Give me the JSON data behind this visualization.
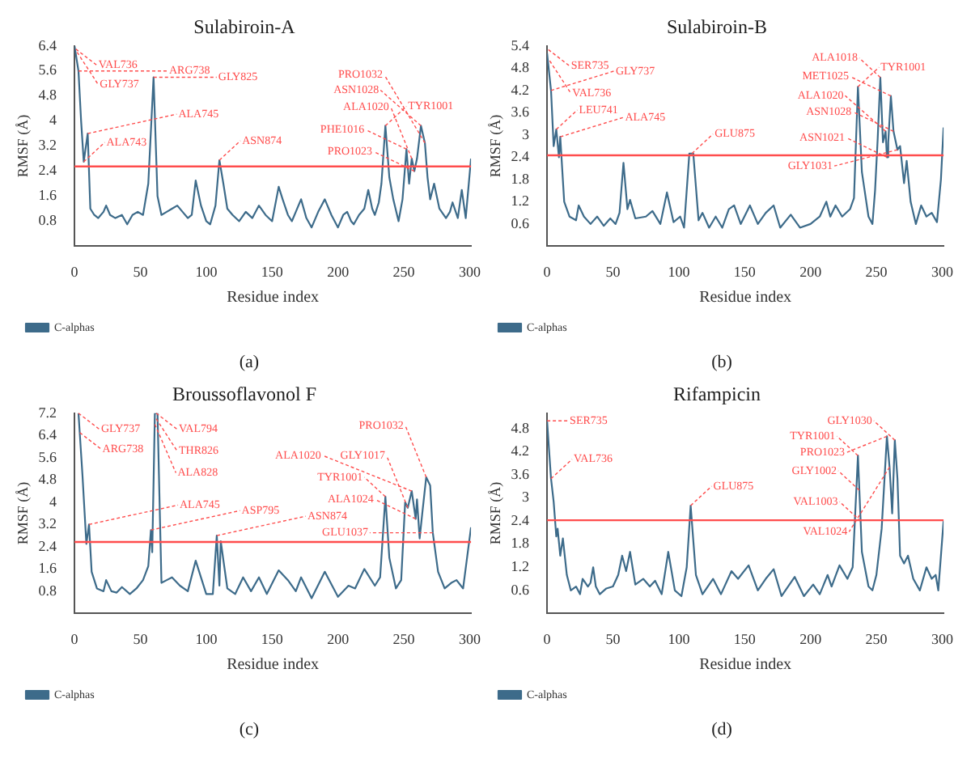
{
  "chart_data": [
    {
      "type": "line",
      "title": "Sulabiroin-A",
      "xlabel": "Residue index",
      "ylabel": "RMSF (Å)",
      "xlim": [
        0,
        301
      ],
      "xticks": [
        0,
        50,
        100,
        150,
        200,
        250,
        300
      ],
      "ylim": [
        0,
        6.4
      ],
      "yticks": [
        0.8,
        1.6,
        2.4,
        3.2,
        4.0,
        4.8,
        5.6,
        6.4
      ],
      "legend": "bottom left",
      "grid": false,
      "series": [
        {
          "name": "C-alphas",
          "color": "#3d6b8a",
          "x": [
            0,
            3,
            5,
            7,
            8,
            10,
            12,
            15,
            18,
            22,
            24,
            27,
            31,
            36,
            40,
            44,
            48,
            52,
            56,
            60,
            63,
            66,
            70,
            74,
            78,
            82,
            86,
            89,
            92,
            96,
            100,
            103,
            107,
            110,
            113,
            116,
            120,
            125,
            130,
            135,
            140,
            145,
            150,
            155,
            158,
            162,
            165,
            168,
            172,
            176,
            180,
            185,
            190,
            195,
            200,
            204,
            207,
            210,
            212,
            216,
            220,
            223,
            226,
            228,
            231,
            233,
            236,
            239,
            242,
            246,
            249,
            252,
            254,
            256,
            258,
            260,
            263,
            266,
            268,
            270,
            273,
            277,
            282,
            285,
            287,
            291,
            294,
            297,
            301
          ],
          "values": [
            6.4,
            5.6,
            4.0,
            2.7,
            3.0,
            3.6,
            1.2,
            1.0,
            0.9,
            1.1,
            1.3,
            1.0,
            0.9,
            1.0,
            0.7,
            1.0,
            1.1,
            1.0,
            2.0,
            5.4,
            1.6,
            1.0,
            1.1,
            1.2,
            1.3,
            1.1,
            0.9,
            1.0,
            2.1,
            1.3,
            0.8,
            0.7,
            1.3,
            2.75,
            2.0,
            1.2,
            1.0,
            0.8,
            1.1,
            0.9,
            1.3,
            1.0,
            0.8,
            1.9,
            1.5,
            1.0,
            0.8,
            1.1,
            1.5,
            0.9,
            0.6,
            1.1,
            1.5,
            1.0,
            0.6,
            1.0,
            1.1,
            0.8,
            0.7,
            1.0,
            1.2,
            1.8,
            1.2,
            1.0,
            1.4,
            2.0,
            3.85,
            2.2,
            1.5,
            0.8,
            1.5,
            3.1,
            2.0,
            2.8,
            2.4,
            2.8,
            3.85,
            3.3,
            2.2,
            1.5,
            2.0,
            1.2,
            0.9,
            1.1,
            1.4,
            0.9,
            1.8,
            0.9,
            2.8
          ]
        }
      ],
      "ref_lines": [
        {
          "axis": "y",
          "value": 2.55,
          "color": "#ff4d4d"
        }
      ],
      "annotations": [
        {
          "text": "VAL736",
          "x": 1,
          "y": 6.3
        },
        {
          "text": "GLY737",
          "x": 2,
          "y": 6.2
        },
        {
          "text": "ARG738",
          "x": 3,
          "y": 5.6
        },
        {
          "text": "ALA745",
          "x": 10,
          "y": 3.6
        },
        {
          "text": "ALA743",
          "x": 7,
          "y": 2.7
        },
        {
          "text": "GLY825",
          "x": 60,
          "y": 5.4
        },
        {
          "text": "ASN874",
          "x": 110,
          "y": 2.75
        },
        {
          "text": "TYR1001",
          "x": 236,
          "y": 3.85
        },
        {
          "text": "PHE1016",
          "x": 252,
          "y": 3.1
        },
        {
          "text": "ALA1020",
          "x": 256,
          "y": 2.8
        },
        {
          "text": "PRO1023",
          "x": 258,
          "y": 2.4
        },
        {
          "text": "ASN1028",
          "x": 263,
          "y": 3.85
        },
        {
          "text": "PRO1032",
          "x": 266,
          "y": 3.3
        },
        "(a)"
      ]
    },
    {
      "type": "line",
      "title": "Sulabiroin-B",
      "xlabel": "Residue index",
      "ylabel": "RMSF (Å)",
      "xlim": [
        0,
        301
      ],
      "xticks": [
        0,
        50,
        100,
        150,
        200,
        250,
        300
      ],
      "ylim": [
        0,
        5.4
      ],
      "yticks": [
        0.6,
        1.2,
        1.8,
        2.4,
        3.0,
        3.6,
        4.2,
        4.8,
        5.4
      ],
      "legend": "bottom left",
      "grid": false,
      "series": [
        {
          "name": "C-alphas",
          "color": "#3d6b8a",
          "x": [
            0,
            3,
            5,
            7,
            9,
            10,
            13,
            17,
            22,
            24,
            28,
            33,
            38,
            43,
            48,
            52,
            55,
            58,
            61,
            63,
            67,
            75,
            80,
            86,
            91,
            96,
            101,
            104,
            108,
            111,
            115,
            118,
            123,
            128,
            133,
            138,
            142,
            147,
            154,
            160,
            166,
            172,
            177,
            185,
            192,
            200,
            207,
            212,
            215,
            219,
            224,
            230,
            233,
            236,
            239,
            244,
            247,
            249,
            251,
            253,
            255,
            257,
            258,
            259,
            261,
            263,
            266,
            268,
            271,
            273,
            276,
            280,
            284,
            288,
            292,
            296,
            299,
            301
          ],
          "values": [
            5.2,
            4.2,
            2.7,
            3.15,
            2.4,
            2.95,
            1.2,
            0.8,
            0.7,
            1.1,
            0.8,
            0.6,
            0.8,
            0.55,
            0.75,
            0.6,
            0.9,
            2.25,
            1.0,
            1.25,
            0.75,
            0.8,
            0.95,
            0.6,
            1.45,
            0.65,
            0.8,
            0.5,
            2.5,
            2.5,
            0.7,
            0.9,
            0.5,
            0.8,
            0.5,
            1.0,
            1.1,
            0.6,
            1.1,
            0.6,
            0.9,
            1.1,
            0.5,
            0.85,
            0.5,
            0.6,
            0.8,
            1.2,
            0.8,
            1.1,
            0.8,
            1.0,
            1.3,
            4.3,
            2.0,
            0.8,
            0.6,
            1.5,
            2.9,
            4.55,
            2.8,
            3.1,
            2.4,
            2.8,
            4.05,
            3.1,
            2.6,
            2.7,
            1.7,
            2.3,
            1.2,
            0.6,
            1.1,
            0.8,
            0.9,
            0.65,
            1.8,
            3.2
          ]
        }
      ],
      "ref_lines": [
        {
          "axis": "y",
          "value": 2.45,
          "color": "#ff4d4d"
        }
      ],
      "annotations": [
        {
          "text": "SER735",
          "x": 1,
          "y": 5.3
        },
        {
          "text": "VAL736",
          "x": 2,
          "y": 5.0
        },
        {
          "text": "GLY737",
          "x": 3,
          "y": 4.2
        },
        {
          "text": "LEU741",
          "x": 7,
          "y": 3.15
        },
        {
          "text": "ALA745",
          "x": 10,
          "y": 2.95
        },
        {
          "text": "GLU875",
          "x": 110,
          "y": 2.5
        },
        {
          "text": "TYR1001",
          "x": 236,
          "y": 4.3
        },
        {
          "text": "ALA1018",
          "x": 253,
          "y": 4.55
        },
        {
          "text": "MET1025",
          "x": 261,
          "y": 4.05
        },
        {
          "text": "ASN1028",
          "x": 263,
          "y": 3.1
        },
        {
          "text": "ALA1020",
          "x": 257,
          "y": 3.1
        },
        {
          "text": "ASN1021",
          "x": 258,
          "y": 2.4
        },
        {
          "text": "GLY1031",
          "x": 266,
          "y": 2.6
        },
        "(b)"
      ]
    },
    {
      "type": "line",
      "title": "Broussoflavonol F",
      "xlabel": "Residue index",
      "ylabel": "RMSF (Å)",
      "xlim": [
        0,
        301
      ],
      "xticks": [
        0,
        50,
        100,
        150,
        200,
        250,
        300
      ],
      "ylim": [
        0,
        7.2
      ],
      "yticks": [
        0.8,
        1.6,
        2.4,
        3.2,
        4.0,
        4.8,
        5.6,
        6.4,
        7.2
      ],
      "legend": "bottom left",
      "grid": false,
      "series": [
        {
          "name": "C-alphas",
          "color": "#3d6b8a",
          "x": [
            3,
            6,
            9,
            11,
            13,
            17,
            22,
            24,
            28,
            32,
            36,
            42,
            47,
            52,
            56,
            58,
            59,
            61,
            63,
            66,
            70,
            74,
            80,
            86,
            92,
            100,
            105,
            108,
            110,
            111,
            116,
            122,
            128,
            134,
            140,
            146,
            155,
            162,
            168,
            172,
            180,
            190,
            200,
            208,
            213,
            220,
            228,
            232,
            236,
            239,
            244,
            248,
            251,
            253,
            256,
            259,
            260,
            262,
            264,
            267,
            270,
            272,
            276,
            281,
            286,
            290,
            295,
            301
          ],
          "values": [
            7.2,
            5.0,
            2.5,
            3.2,
            1.5,
            0.9,
            0.8,
            1.2,
            0.8,
            0.75,
            0.95,
            0.7,
            0.9,
            1.2,
            1.7,
            3.0,
            2.2,
            7.2,
            7.2,
            1.1,
            1.2,
            1.3,
            1.0,
            0.8,
            1.9,
            0.7,
            0.7,
            2.8,
            1.0,
            2.6,
            0.9,
            0.7,
            1.3,
            0.8,
            1.3,
            0.7,
            1.55,
            1.2,
            0.8,
            1.3,
            0.55,
            1.5,
            0.6,
            1.0,
            0.9,
            1.6,
            1.0,
            1.3,
            4.2,
            2.0,
            0.9,
            1.2,
            4.0,
            3.8,
            4.4,
            3.4,
            4.1,
            2.7,
            3.6,
            4.9,
            4.6,
            2.9,
            1.5,
            0.9,
            1.1,
            1.2,
            0.9,
            3.1
          ]
        }
      ],
      "ref_lines": [
        {
          "axis": "y",
          "value": 2.57,
          "color": "#ff4d4d"
        }
      ],
      "annotations": [
        {
          "text": "GLY737",
          "x": 3,
          "y": 7.2
        },
        {
          "text": "ARG738",
          "x": 4,
          "y": 6.5
        },
        {
          "text": "ALA745",
          "x": 11,
          "y": 3.2
        },
        {
          "text": "ASP795",
          "x": 58,
          "y": 3.0
        },
        {
          "text": "VAL794",
          "x": 62,
          "y": 7.2
        },
        {
          "text": "THR826",
          "x": 62,
          "y": 7.0
        },
        {
          "text": "ALA828",
          "x": 61,
          "y": 6.8
        },
        {
          "text": "ASN874",
          "x": 108,
          "y": 2.8
        },
        {
          "text": "TYR1001",
          "x": 236,
          "y": 4.2
        },
        {
          "text": "GLY1017",
          "x": 253,
          "y": 3.8
        },
        {
          "text": "ALA1020",
          "x": 256,
          "y": 4.4
        },
        {
          "text": "ALA1024",
          "x": 259,
          "y": 3.4
        },
        {
          "text": "PRO1032",
          "x": 267,
          "y": 4.9
        },
        {
          "text": "GLU1037",
          "x": 272,
          "y": 2.9
        },
        "(c)"
      ]
    },
    {
      "type": "line",
      "title": "Rifampicin",
      "xlabel": "Residue index",
      "ylabel": "RMSF (Å)",
      "xlim": [
        0,
        301
      ],
      "xticks": [
        0,
        50,
        100,
        150,
        200,
        250,
        300
      ],
      "ylim": [
        0,
        5.2
      ],
      "yticks": [
        0.6,
        1.2,
        1.8,
        2.4,
        3.0,
        3.6,
        4.2,
        4.8
      ],
      "legend": "bottom left",
      "grid": false,
      "series": [
        {
          "name": "C-alphas",
          "color": "#3d6b8a",
          "x": [
            0,
            3,
            5,
            7,
            8,
            10,
            12,
            15,
            18,
            22,
            25,
            27,
            31,
            33,
            35,
            37,
            40,
            45,
            50,
            54,
            57,
            60,
            63,
            67,
            73,
            78,
            82,
            87,
            92,
            97,
            102,
            106,
            109,
            113,
            118,
            126,
            132,
            140,
            145,
            153,
            160,
            166,
            172,
            178,
            188,
            195,
            202,
            207,
            213,
            216,
            222,
            228,
            232,
            236,
            239,
            244,
            247,
            250,
            254,
            258,
            260,
            262,
            264,
            266,
            268,
            271,
            274,
            278,
            283,
            288,
            292,
            295,
            297,
            301
          ],
          "values": [
            5.0,
            3.5,
            2.9,
            2.0,
            2.2,
            1.5,
            1.95,
            1.0,
            0.6,
            0.7,
            0.5,
            0.9,
            0.7,
            0.8,
            1.2,
            0.7,
            0.5,
            0.65,
            0.7,
            1.0,
            1.5,
            1.1,
            1.6,
            0.75,
            0.9,
            0.7,
            0.85,
            0.5,
            1.6,
            0.6,
            0.45,
            1.2,
            2.8,
            1.0,
            0.5,
            0.9,
            0.5,
            1.1,
            0.9,
            1.25,
            0.6,
            0.9,
            1.15,
            0.45,
            0.95,
            0.45,
            0.75,
            0.5,
            1.0,
            0.7,
            1.25,
            0.9,
            1.2,
            4.1,
            1.6,
            0.7,
            0.6,
            1.0,
            2.2,
            4.6,
            3.8,
            2.6,
            4.5,
            3.5,
            1.5,
            1.3,
            1.5,
            0.9,
            0.6,
            1.2,
            0.9,
            1.0,
            0.6,
            2.4
          ]
        }
      ],
      "ref_lines": [
        {
          "axis": "y",
          "value": 2.42,
          "color": "#ff4d4d"
        }
      ],
      "annotations": [
        {
          "text": "SER735",
          "x": 0,
          "y": 5.0
        },
        {
          "text": "VAL736",
          "x": 3,
          "y": 3.5
        },
        {
          "text": "GLU875",
          "x": 109,
          "y": 2.8
        },
        {
          "text": "TYR1001",
          "x": 236,
          "y": 4.1
        },
        {
          "text": "GLY1002",
          "x": 237,
          "y": 3.2
        },
        {
          "text": "VAL1003",
          "x": 238,
          "y": 2.4
        },
        {
          "text": "PRO1023",
          "x": 258,
          "y": 4.6
        },
        {
          "text": "VAL1024",
          "x": 260,
          "y": 3.8
        },
        {
          "text": "GLY1030",
          "x": 264,
          "y": 4.5
        },
        "(d)"
      ]
    }
  ]
}
